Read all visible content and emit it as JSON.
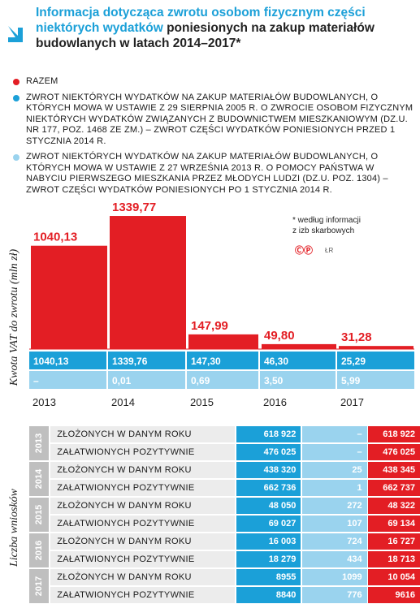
{
  "header": {
    "title_blue": "Informacja dotycząca zwrotu osobom fizycznym części niektórych wydatków",
    "title_rest": "poniesionych na zakup materiałów budowlanych  w latach 2014–2017*"
  },
  "legend": [
    {
      "color": "#e31e24",
      "text": "RAZEM"
    },
    {
      "color": "#1ba0d8",
      "text": "ZWROT NIEKTÓRYCH WYDATKÓW NA ZAKUP MATERIAŁÓW BUDOWLANYCH, O KTÓRYCH MOWA W USTAWIE Z 29 SIERPNIA 2005 R. O ZWROCIE OSOBOM FIZYCZNYM NIEKTÓRYCH WYDATKÓW ZWIĄZANYCH Z BUDOWNICTWEM MIESZKANIOWYM (DZ.U. NR 177, POZ. 1468 ZE ZM.) – ZWROT CZĘŚCI WYDATKÓW PONIESIONYCH PRZED 1 STYCZNIA 2014 R."
    },
    {
      "color": "#9ad3ee",
      "text": "ZWROT NIEKTÓRYCH WYDATKÓW NA ZAKUP MATERIAŁÓW BUDOWLANYCH, O KTÓRYCH MOWA W USTAWIE Z 27 WRZEŚNIA 2013 R. O POMOCY PAŃSTWA W NABYCIU PIERWSZEGO MIESZKANIA PRZEZ MŁODYCH LUDZI (DZ.U. POZ. 1304) – ZWROT CZĘŚCI WYDATKÓW PONIESIONYCH PO 1 STYCZNIA 2014 R."
    }
  ],
  "note": {
    "line1": "* według informacji",
    "line2": "z izb skarbowych",
    "copyright": "ⒸⓅ",
    "author": "ŁR"
  },
  "chart_data": {
    "type": "bar",
    "ylabel": "Kwota VAT do zwrotu (mln zł)",
    "categories": [
      "2013",
      "2014",
      "2015",
      "2016",
      "2017"
    ],
    "series": [
      {
        "name": "RAZEM",
        "color": "#e31e24",
        "values": [
          1040.13,
          1339.77,
          147.99,
          49.8,
          31.28
        ],
        "labels": [
          "1040,13",
          "1339,77",
          "147,99",
          "49,80",
          "31,28"
        ]
      },
      {
        "color": "#1ba0d8",
        "values": [
          1040.13,
          1339.76,
          147.3,
          46.3,
          25.29
        ],
        "labels": [
          "1040,13",
          "1339,76",
          "147,30",
          "46,30",
          "25,29"
        ]
      },
      {
        "color": "#9ad3ee",
        "values": [
          null,
          0.01,
          0.69,
          3.5,
          5.99
        ],
        "labels": [
          "–",
          "0,01",
          "0,69",
          "3,50",
          "5,99"
        ]
      }
    ],
    "ylim": [
      0,
      1340
    ]
  },
  "table": {
    "ylabel": "Liczba wniosków",
    "rows": [
      {
        "year": "2013",
        "label": "ZŁOŻONYCH W DANYM ROKU",
        "v1": "618 922",
        "v2": "–",
        "v3": "618 922"
      },
      {
        "year": "2013",
        "label": "ZAŁATWIONYCH POZYTYWNIE",
        "v1": "476 025",
        "v2": "–",
        "v3": "476 025"
      },
      {
        "year": "2014",
        "label": "ZŁOŻONYCH W DANYM ROKU",
        "v1": "438 320",
        "v2": "25",
        "v3": "438 345"
      },
      {
        "year": "2014",
        "label": "ZAŁATWIONYCH POZYTYWNIE",
        "v1": "662 736",
        "v2": "1",
        "v3": "662 737"
      },
      {
        "year": "2015",
        "label": "ZŁOŻONYCH W DANYM ROKU",
        "v1": "48 050",
        "v2": "272",
        "v3": "48 322"
      },
      {
        "year": "2015",
        "label": "ZAŁATWIONYCH POZYTYWNIE",
        "v1": "69 027",
        "v2": "107",
        "v3": "69 134"
      },
      {
        "year": "2016",
        "label": "ZŁOŻONYCH W DANYM ROKU",
        "v1": "16 003",
        "v2": "724",
        "v3": "16 727"
      },
      {
        "year": "2016",
        "label": "ZAŁATWIONYCH POZYTYWNIE",
        "v1": "18 279",
        "v2": "434",
        "v3": "18 713"
      },
      {
        "year": "2017",
        "label": "ZŁOŻONYCH W DANYM ROKU",
        "v1": "8955",
        "v2": "1099",
        "v3": "10 054"
      },
      {
        "year": "2017",
        "label": "ZAŁATWIONYCH POZYTYWNIE",
        "v1": "8840",
        "v2": "776",
        "v3": "9616"
      }
    ]
  }
}
